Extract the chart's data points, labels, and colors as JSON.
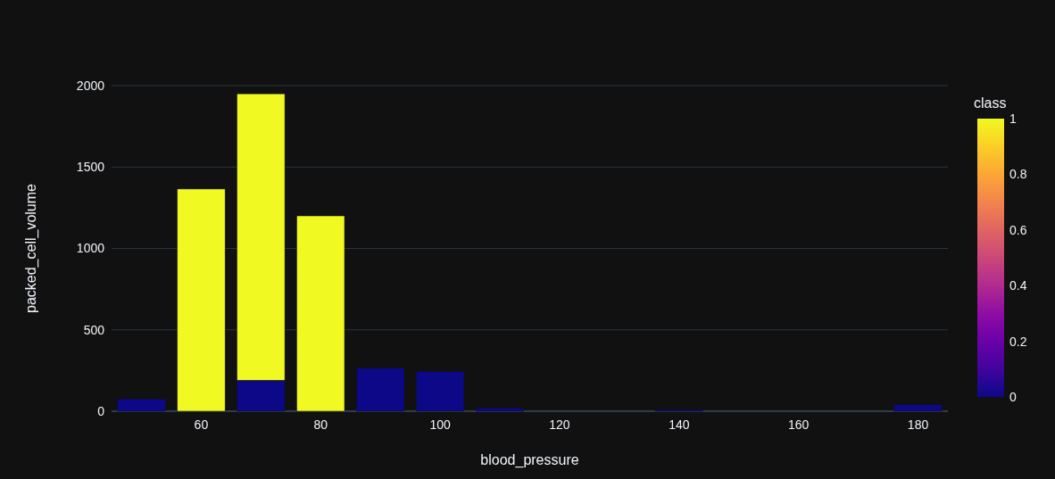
{
  "chart_data": {
    "type": "bar",
    "stacked": true,
    "xlabel": "blood_pressure",
    "ylabel": "packed_cell_volume",
    "clabel": "class",
    "clim": [
      0,
      1
    ],
    "cticks": [
      0,
      0.2,
      0.4,
      0.6,
      0.8,
      1
    ],
    "xlim": [
      45,
      185
    ],
    "xticks": [
      60,
      80,
      100,
      120,
      140,
      160,
      180
    ],
    "ylim": [
      0,
      2000
    ],
    "yticks": [
      0,
      500,
      1000,
      1500,
      2000
    ],
    "grid": "y",
    "x": [
      50,
      60,
      70,
      80,
      90,
      100,
      110,
      140,
      180
    ],
    "series": [
      {
        "color": "#0d0887",
        "values": [
          75,
          null,
          190,
          null,
          265,
          245,
          20,
          10,
          40
        ]
      },
      {
        "color": "#f0f921",
        "values": [
          null,
          1365,
          1760,
          1200,
          null,
          null,
          null,
          null,
          null
        ]
      }
    ]
  }
}
